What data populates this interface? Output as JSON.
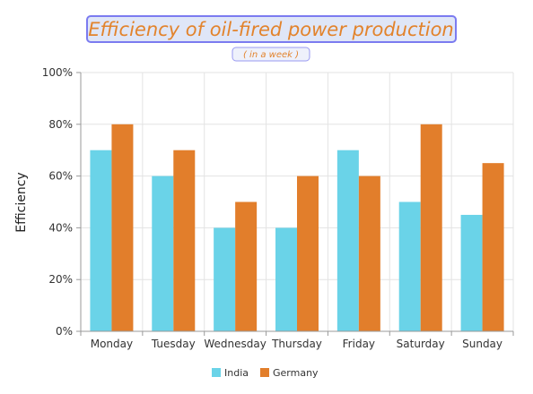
{
  "chart_data": {
    "type": "bar",
    "title": "Efficiency of oil-fired power production",
    "subtitle": "( in a week )",
    "xlabel": "",
    "ylabel": "Efficiency",
    "categories": [
      "Monday",
      "Tuesday",
      "Wednesday",
      "Thursday",
      "Friday",
      "Saturday",
      "Sunday"
    ],
    "series": [
      {
        "name": "India",
        "color": "#6ad3e8",
        "values": [
          70,
          60,
          40,
          40,
          70,
          50,
          45
        ]
      },
      {
        "name": "Germany",
        "color": "#e27e2b",
        "values": [
          80,
          70,
          50,
          60,
          60,
          80,
          65
        ]
      }
    ],
    "ylim": [
      0,
      100
    ],
    "yticks": [
      0,
      20,
      40,
      60,
      80,
      100
    ],
    "ytick_labels": [
      "0%",
      "20%",
      "40%",
      "60%",
      "80%",
      "100%"
    ],
    "grid": true,
    "legend_position": "bottom-center"
  }
}
